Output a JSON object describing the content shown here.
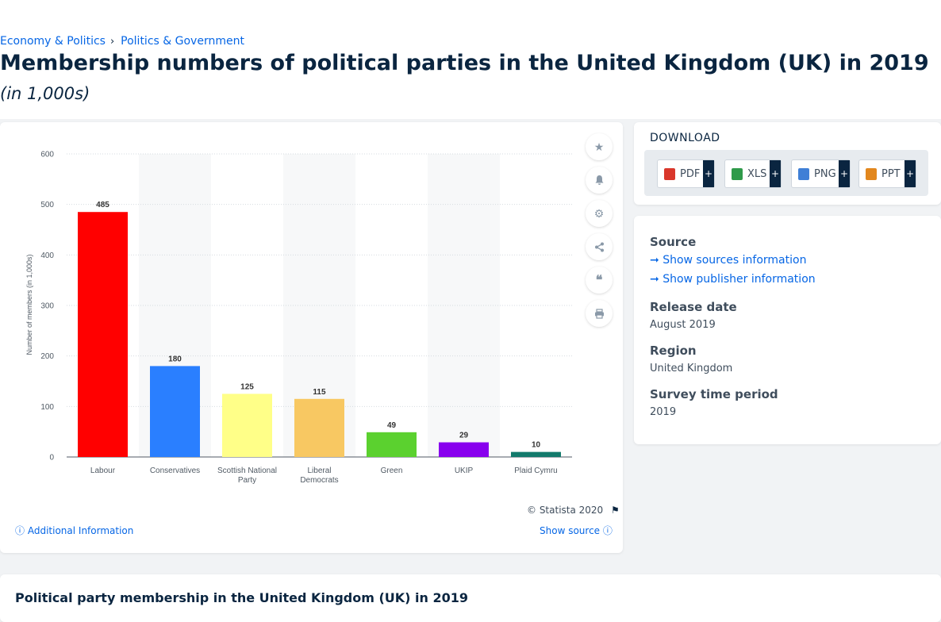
{
  "breadcrumb": {
    "items": [
      "Economy & Politics",
      "Politics & Government"
    ],
    "separator": "›"
  },
  "page": {
    "title": "Membership numbers of political parties in the United Kingdom (UK) in 2019",
    "subtitle": "(in 1,000s)"
  },
  "chart_card": {
    "copyright": "© Statista 2020",
    "additional_info": "Additional Information",
    "show_source": "Show source",
    "side_icons": [
      "star-icon",
      "bell-icon",
      "gear-icon",
      "share-icon",
      "quote-icon",
      "print-icon"
    ]
  },
  "download": {
    "heading": "DOWNLOAD",
    "buttons": [
      {
        "label": "PDF",
        "plus": "+",
        "color": "#d9372b"
      },
      {
        "label": "XLS",
        "plus": "+",
        "color": "#2f9a4a"
      },
      {
        "label": "PNG",
        "plus": "+",
        "color": "#3f7fd6"
      },
      {
        "label": "PPT",
        "plus": "+",
        "color": "#e2871e"
      }
    ]
  },
  "source_panel": {
    "source_heading": "Source",
    "show_sources": "Show sources information",
    "show_publisher": "Show publisher information",
    "release_heading": "Release date",
    "release_value": "August 2019",
    "region_heading": "Region",
    "region_value": "United Kingdom",
    "period_heading": "Survey time period",
    "period_value": "2019"
  },
  "bottom": {
    "title": "Political party membership in the United Kingdom (UK) in 2019"
  },
  "chart_data": {
    "type": "bar",
    "categories": [
      "Labour",
      "Conservatives",
      "Scottish National Party",
      "Liberal Democrats",
      "Green",
      "UKIP",
      "Plaid Cymru"
    ],
    "category_lines": [
      [
        "Labour"
      ],
      [
        "Conservatives"
      ],
      [
        "Scottish National",
        "Party"
      ],
      [
        "Liberal",
        "Democrats"
      ],
      [
        "Green"
      ],
      [
        "UKIP"
      ],
      [
        "Plaid Cymru"
      ]
    ],
    "values": [
      485,
      180,
      125,
      115,
      49,
      29,
      10
    ],
    "colors": [
      "#ff0000",
      "#2a7fff",
      "#ffff88",
      "#f8c862",
      "#5bd12f",
      "#8800ee",
      "#127a6c"
    ],
    "ylabel": "Number of members (in 1,000s)",
    "xlabel": "",
    "ylim": [
      0,
      600
    ],
    "yticks": [
      0,
      100,
      200,
      300,
      400,
      500,
      600
    ],
    "grid": true
  }
}
